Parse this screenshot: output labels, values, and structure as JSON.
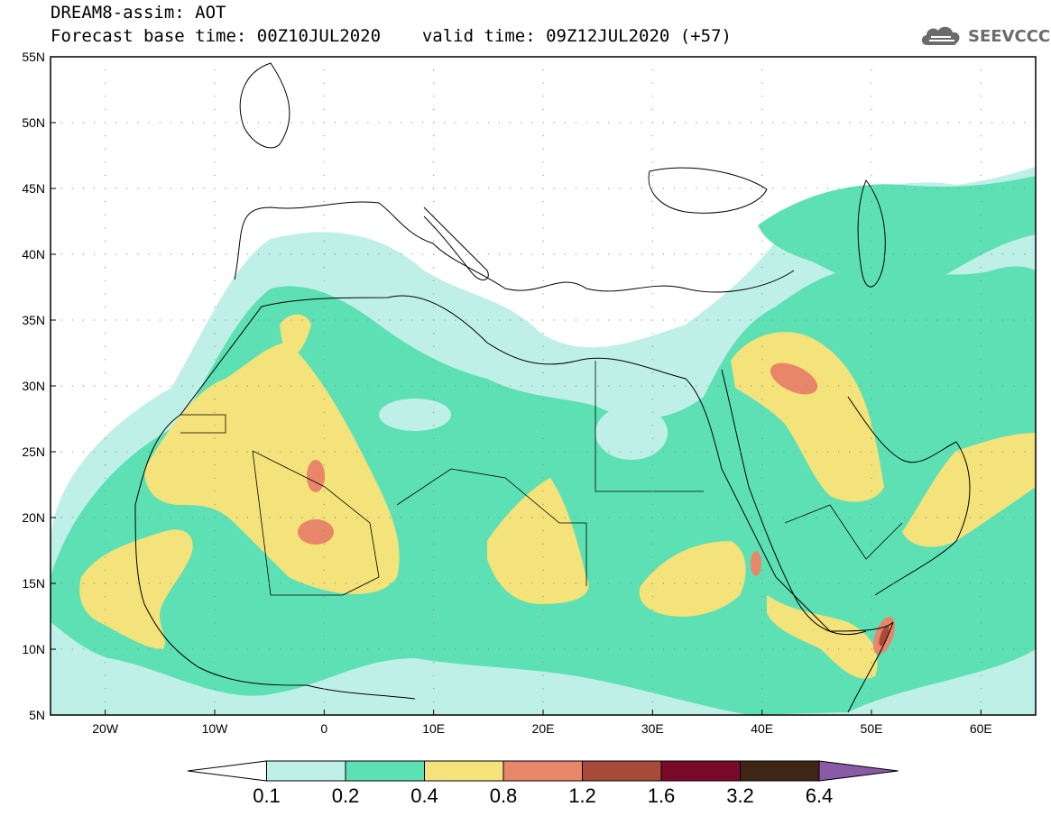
{
  "title": {
    "line1": "DREAM8-assim: AOT",
    "line2_base": "Forecast base time: 00Z10JUL2020",
    "line2_valid": "valid time: 09Z12JUL2020 (+57)"
  },
  "brand": {
    "name": "SEEVCCC",
    "icon": "cloud-logo-icon"
  },
  "map": {
    "lat_ticks": [
      "55N",
      "50N",
      "45N",
      "40N",
      "35N",
      "30N",
      "25N",
      "20N",
      "15N",
      "10N",
      "5N"
    ],
    "lon_ticks": [
      "20W",
      "10W",
      "0",
      "10E",
      "20E",
      "30E",
      "40E",
      "50E",
      "60E"
    ],
    "extent": {
      "lon": [
        -25,
        65
      ],
      "lat": [
        5,
        55
      ]
    }
  },
  "legend": {
    "labels": [
      "0.1",
      "0.2",
      "0.4",
      "0.8",
      "1.2",
      "1.6",
      "3.2",
      "6.4"
    ],
    "colors": [
      "#ffffff",
      "#bff0e8",
      "#5ee0b5",
      "#f4e27a",
      "#e8866a",
      "#a84a3a",
      "#7a0a2c",
      "#3e2516",
      "#8a5aa6"
    ]
  }
}
